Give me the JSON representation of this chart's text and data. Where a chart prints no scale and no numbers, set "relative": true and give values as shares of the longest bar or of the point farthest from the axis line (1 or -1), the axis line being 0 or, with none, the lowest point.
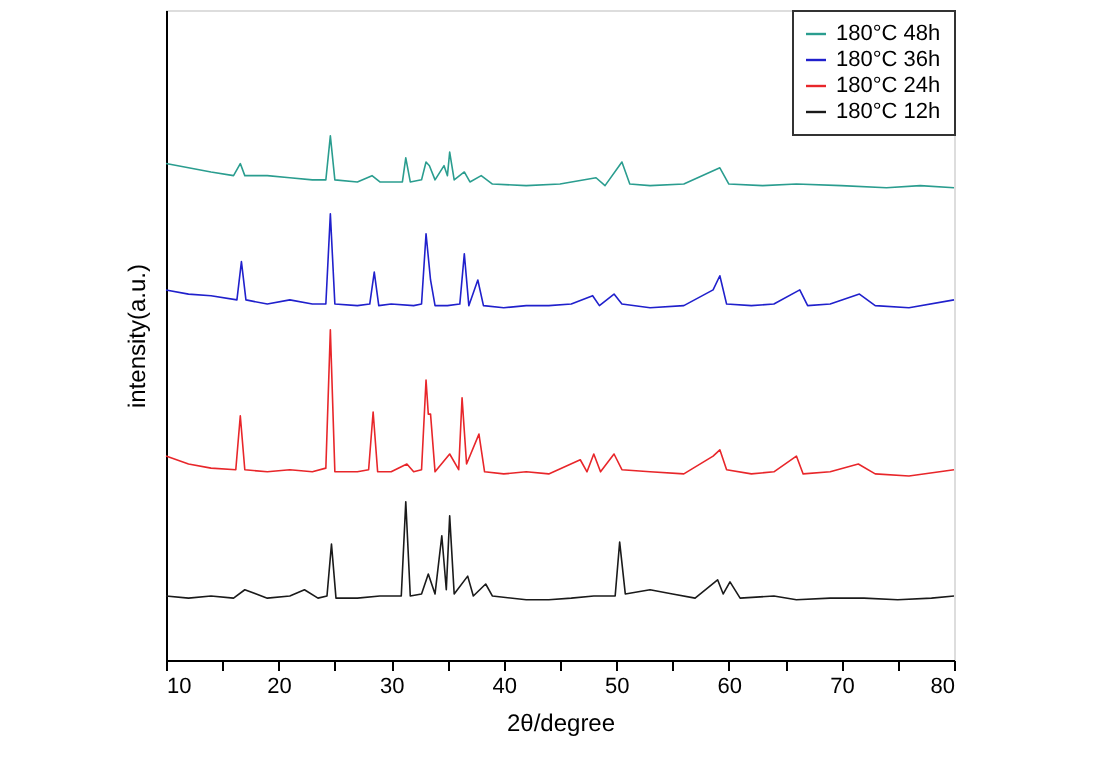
{
  "chart_data": {
    "type": "line",
    "relative": true,
    "xlabel": "2θ/degree",
    "ylabel": "intensity(a.u.)",
    "xlim": [
      10,
      80
    ],
    "xticks": [
      10,
      {
        "value": 15,
        "label": null
      },
      20,
      {
        "value": 25,
        "label": null
      },
      30,
      {
        "value": 35,
        "label": null
      },
      40,
      {
        "value": 45,
        "label": null
      },
      50,
      {
        "value": 55,
        "label": null
      },
      60,
      {
        "value": 65,
        "label": null
      },
      70,
      {
        "value": 75,
        "label": null
      },
      80
    ],
    "legend": "top right",
    "grid": false,
    "line_style": "solid",
    "marker": "none",
    "tick_labels": "x",
    "series": [
      {
        "name": "180°C 48h",
        "color": "#2a9d8f",
        "x": [
          10,
          12,
          14,
          16,
          16.6,
          17,
          19,
          21,
          23,
          24.2,
          24.6,
          25,
          27,
          28.3,
          29,
          31,
          31.3,
          31.7,
          32.7,
          33.1,
          33.4,
          33.9,
          34.7,
          35.0,
          35.2,
          35.6,
          36.5,
          37,
          38,
          39,
          42,
          45,
          48.2,
          49,
          50.5,
          51.2,
          53,
          56,
          59.2,
          60,
          63,
          66,
          70,
          74,
          77,
          80
        ],
        "values": [
          0.947,
          0.939,
          0.931,
          0.924,
          0.947,
          0.924,
          0.924,
          0.92,
          0.916,
          0.916,
          1.0,
          0.916,
          0.912,
          0.924,
          0.912,
          0.912,
          0.958,
          0.912,
          0.916,
          0.95,
          0.943,
          0.916,
          0.943,
          0.924,
          0.969,
          0.916,
          0.931,
          0.912,
          0.924,
          0.908,
          0.905,
          0.908,
          0.92,
          0.905,
          0.95,
          0.908,
          0.905,
          0.908,
          0.939,
          0.908,
          0.905,
          0.908,
          0.905,
          0.901,
          0.905,
          0.901
        ]
      },
      {
        "name": "180°C 36h",
        "color": "#2020cc",
        "x": [
          10,
          12,
          14,
          16.3,
          16.7,
          17.1,
          19,
          21,
          23,
          24.2,
          24.6,
          25,
          27,
          28.1,
          28.5,
          28.9,
          30,
          32,
          32.7,
          33.1,
          33.5,
          33.9,
          35,
          36.1,
          36.5,
          36.9,
          37.7,
          38.2,
          40,
          42,
          44,
          46,
          47.9,
          48.5,
          49.8,
          50.5,
          53,
          56,
          58.6,
          59.2,
          59.8,
          62,
          64,
          66.3,
          67,
          69,
          71.6,
          73,
          76,
          80
        ],
        "values": [
          0.706,
          0.698,
          0.695,
          0.687,
          0.76,
          0.687,
          0.679,
          0.687,
          0.679,
          0.679,
          0.851,
          0.679,
          0.676,
          0.679,
          0.74,
          0.676,
          0.679,
          0.676,
          0.679,
          0.813,
          0.725,
          0.676,
          0.676,
          0.679,
          0.775,
          0.676,
          0.725,
          0.676,
          0.672,
          0.676,
          0.676,
          0.679,
          0.695,
          0.676,
          0.698,
          0.679,
          0.672,
          0.676,
          0.706,
          0.733,
          0.679,
          0.676,
          0.679,
          0.706,
          0.676,
          0.679,
          0.698,
          0.676,
          0.672,
          0.687
        ]
      },
      {
        "name": "180°C 24h",
        "color": "#e8262a",
        "x": [
          10,
          12,
          14,
          16.2,
          16.6,
          17,
          19,
          21,
          23,
          24.2,
          24.6,
          25,
          27,
          28.0,
          28.4,
          28.8,
          30,
          31.4,
          32,
          32.7,
          33.1,
          33.3,
          33.5,
          33.9,
          35.2,
          36,
          36.3,
          36.7,
          37.8,
          38.3,
          40,
          42,
          44,
          46.8,
          47.4,
          48.0,
          48.6,
          49.8,
          50.5,
          53,
          56,
          58.6,
          59.2,
          59.8,
          62,
          64,
          66.0,
          66.6,
          69,
          71.5,
          73,
          76,
          80
        ],
        "values": [
          0.389,
          0.374,
          0.366,
          0.363,
          0.466,
          0.363,
          0.359,
          0.363,
          0.359,
          0.366,
          0.63,
          0.359,
          0.359,
          0.363,
          0.473,
          0.359,
          0.359,
          0.374,
          0.359,
          0.363,
          0.534,
          0.469,
          0.469,
          0.359,
          0.393,
          0.363,
          0.5,
          0.374,
          0.431,
          0.359,
          0.355,
          0.359,
          0.355,
          0.382,
          0.359,
          0.393,
          0.359,
          0.393,
          0.363,
          0.359,
          0.355,
          0.389,
          0.401,
          0.363,
          0.355,
          0.359,
          0.389,
          0.355,
          0.359,
          0.374,
          0.355,
          0.351,
          0.363
        ]
      },
      {
        "name": "180°C 12h",
        "color": "#1a1a1a",
        "x": [
          10,
          12,
          14,
          16,
          17,
          19,
          21,
          22.3,
          23.5,
          24.3,
          24.7,
          25.1,
          27,
          29,
          30.9,
          31.3,
          31.7,
          32.7,
          33.3,
          33.9,
          34.5,
          34.9,
          35.2,
          35.6,
          36.8,
          37.3,
          38.4,
          39,
          42,
          44,
          46,
          48,
          49.9,
          50.3,
          50.8,
          53,
          55,
          57,
          59.0,
          59.5,
          60.1,
          61,
          64,
          66,
          69,
          72,
          75,
          78,
          80
        ],
        "values": [
          0.122,
          0.118,
          0.122,
          0.118,
          0.134,
          0.118,
          0.122,
          0.134,
          0.118,
          0.122,
          0.221,
          0.118,
          0.118,
          0.122,
          0.122,
          0.302,
          0.122,
          0.126,
          0.164,
          0.126,
          0.237,
          0.134,
          0.275,
          0.126,
          0.16,
          0.122,
          0.145,
          0.122,
          0.115,
          0.115,
          0.118,
          0.122,
          0.122,
          0.225,
          0.126,
          0.134,
          0.126,
          0.118,
          0.153,
          0.126,
          0.149,
          0.118,
          0.122,
          0.115,
          0.118,
          0.118,
          0.115,
          0.118,
          0.122
        ]
      }
    ]
  }
}
